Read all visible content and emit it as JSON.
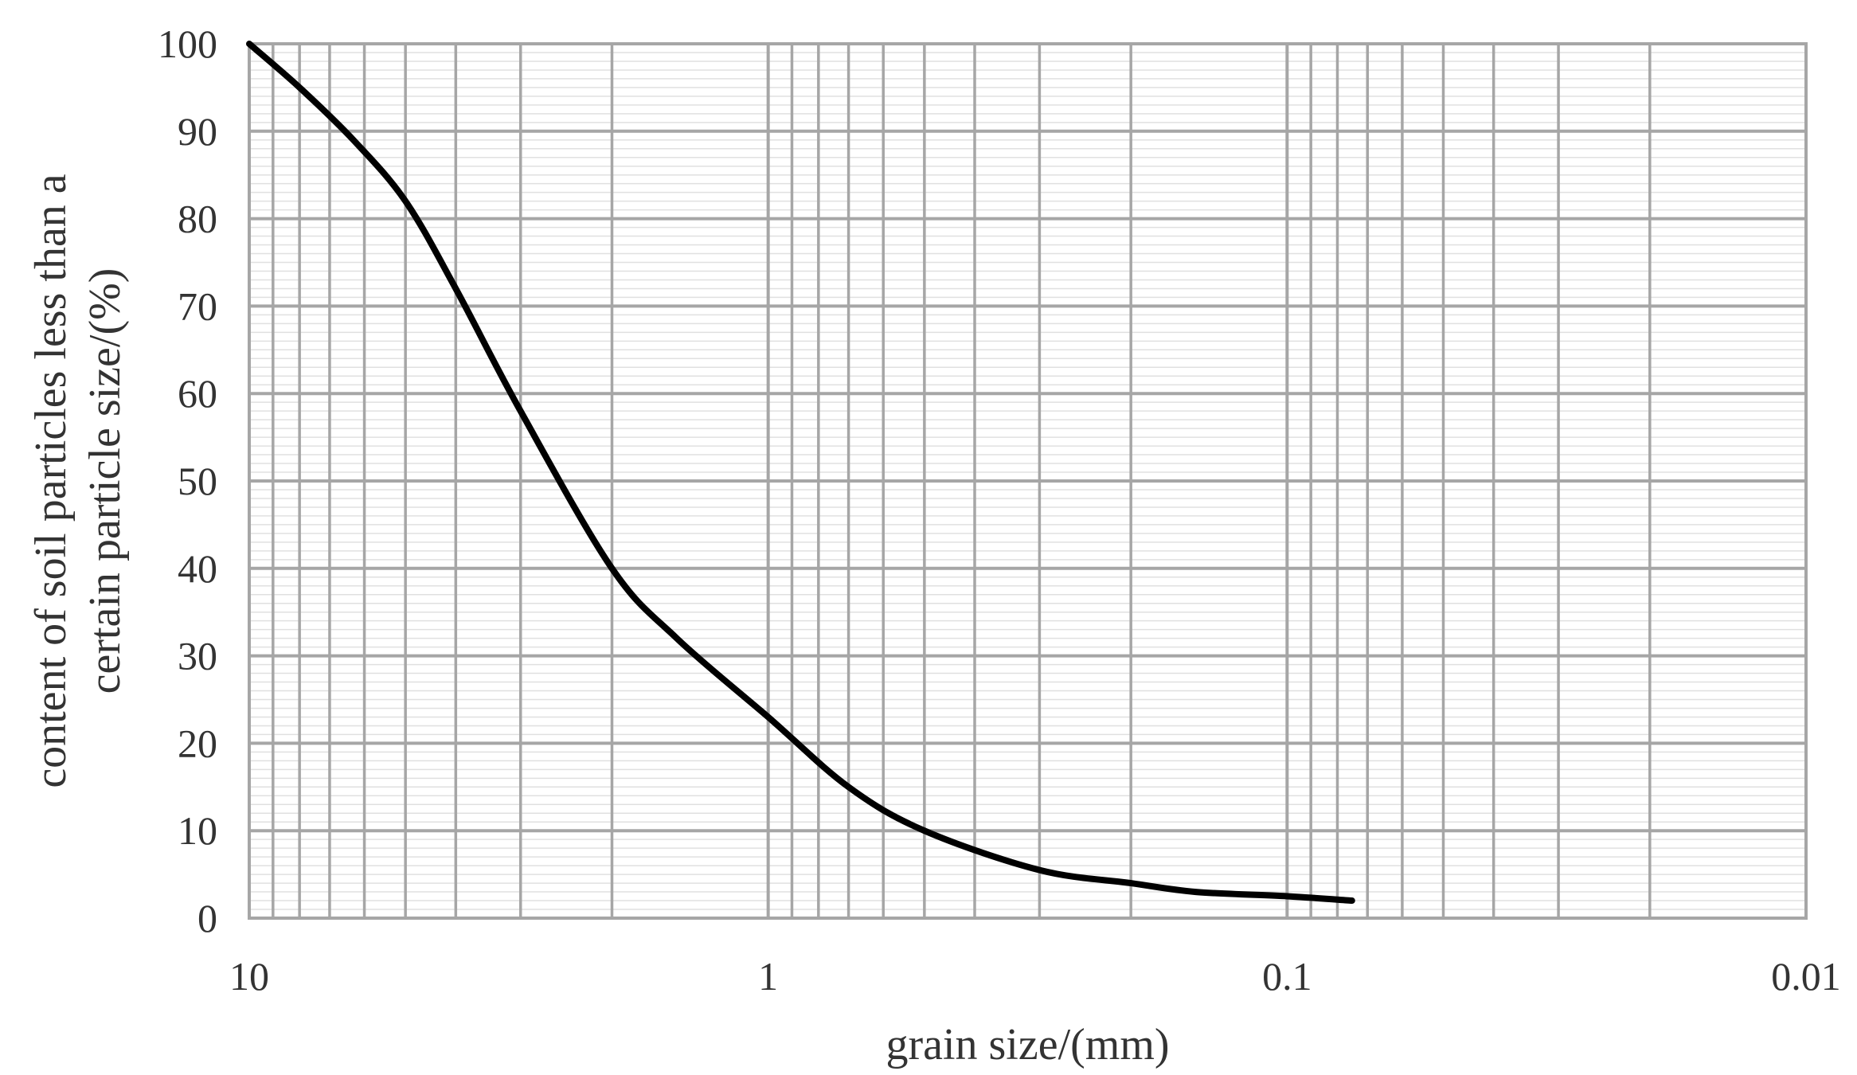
{
  "chart_data": {
    "type": "line",
    "title": "",
    "xlabel": "grain size/(mm)",
    "ylabel_lines": [
      "content of soil particles less than a",
      "certain particle size/(%)"
    ],
    "x_scale": "log",
    "x_reversed": true,
    "xlim": [
      10,
      0.01
    ],
    "ylim": [
      0,
      100
    ],
    "x_ticks": [
      {
        "value": 10,
        "label": "10"
      },
      {
        "value": 1,
        "label": "1"
      },
      {
        "value": 0.1,
        "label": "0.1"
      },
      {
        "value": 0.01,
        "label": "0.01"
      }
    ],
    "y_ticks": [
      {
        "value": 0,
        "label": "0"
      },
      {
        "value": 10,
        "label": "10"
      },
      {
        "value": 20,
        "label": "20"
      },
      {
        "value": 30,
        "label": "30"
      },
      {
        "value": 40,
        "label": "40"
      },
      {
        "value": 50,
        "label": "50"
      },
      {
        "value": 60,
        "label": "60"
      },
      {
        "value": 70,
        "label": "70"
      },
      {
        "value": 80,
        "label": "80"
      },
      {
        "value": 90,
        "label": "90"
      },
      {
        "value": 100,
        "label": "100"
      }
    ],
    "grid": true,
    "legend": "none",
    "line_color": "#000000",
    "grid_color": "#a6a6a6",
    "minor_grid_color": "#e0e0e0",
    "series": [
      {
        "x": [
          10,
          8,
          6.3,
          5,
          4,
          3,
          2,
          1.5,
          1,
          0.7,
          0.5,
          0.3,
          0.2,
          0.15,
          0.1,
          0.075
        ],
        "y": [
          100,
          95,
          89,
          82,
          72,
          58,
          40,
          32,
          23,
          15,
          10,
          5.5,
          4,
          3,
          2.5,
          2
        ]
      }
    ]
  }
}
